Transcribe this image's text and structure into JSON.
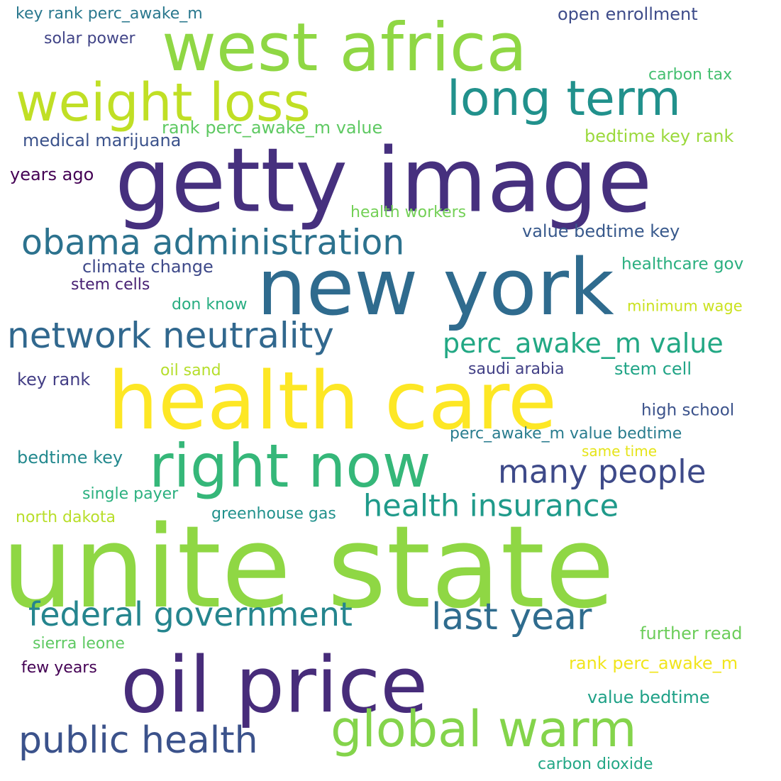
{
  "words": [
    {
      "text": "unite state",
      "color": "#8fd744"
    },
    {
      "text": "getty image",
      "color": "#46307e"
    },
    {
      "text": "health care",
      "color": "#fde725"
    },
    {
      "text": "new york",
      "color": "#2f6b8e"
    },
    {
      "text": "oil price",
      "color": "#472c7a"
    },
    {
      "text": "west africa",
      "color": "#8fd744"
    },
    {
      "text": "right now",
      "color": "#35b779"
    },
    {
      "text": "weight loss",
      "color": "#c0df25"
    },
    {
      "text": "long term",
      "color": "#21918c"
    },
    {
      "text": "global warm",
      "color": "#84d44b"
    },
    {
      "text": "network neutrality",
      "color": "#31688e"
    },
    {
      "text": "obama administration",
      "color": "#2c728e"
    },
    {
      "text": "federal government",
      "color": "#25858e"
    },
    {
      "text": "public health",
      "color": "#3b528b"
    },
    {
      "text": "last year",
      "color": "#2f6c8e"
    },
    {
      "text": "many people",
      "color": "#3e4a89"
    },
    {
      "text": "health insurance",
      "color": "#1f9a8a"
    },
    {
      "text": "perc_awake_m value",
      "color": "#22a884"
    },
    {
      "text": "key rank perc_awake_m",
      "color": "#2a788e"
    },
    {
      "text": "solar power",
      "color": "#414487"
    },
    {
      "text": "open enrollment",
      "color": "#3e4c8a"
    },
    {
      "text": "carbon tax",
      "color": "#44bf70"
    },
    {
      "text": "rank perc_awake_m value",
      "color": "#5ec962"
    },
    {
      "text": "medical marijuana",
      "color": "#3b528b"
    },
    {
      "text": "bedtime key rank",
      "color": "#9bd93c"
    },
    {
      "text": "years ago",
      "color": "#440154"
    },
    {
      "text": "health workers",
      "color": "#73d056"
    },
    {
      "text": "value bedtime key",
      "color": "#38598c"
    },
    {
      "text": "climate change",
      "color": "#3e4989"
    },
    {
      "text": "healthcare gov",
      "color": "#29af7f"
    },
    {
      "text": "stem cells",
      "color": "#482173"
    },
    {
      "text": "don know",
      "color": "#27ad81"
    },
    {
      "text": "minimum wage",
      "color": "#cae11f"
    },
    {
      "text": "oil sand",
      "color": "#b5de2b"
    },
    {
      "text": "saudi arabia",
      "color": "#424086"
    },
    {
      "text": "stem cell",
      "color": "#20a486"
    },
    {
      "text": "key rank",
      "color": "#433e85"
    },
    {
      "text": "high school",
      "color": "#3b528b"
    },
    {
      "text": "perc_awake_m value bedtime",
      "color": "#287c8e"
    },
    {
      "text": "same time",
      "color": "#e5e419"
    },
    {
      "text": "bedtime key",
      "color": "#23898e"
    },
    {
      "text": "single payer",
      "color": "#2ab07f"
    },
    {
      "text": "north dakota",
      "color": "#b8de29"
    },
    {
      "text": "greenhouse gas",
      "color": "#21918c"
    },
    {
      "text": "further read",
      "color": "#6ccd5a"
    },
    {
      "text": "sierra leone",
      "color": "#5ec962"
    },
    {
      "text": "few years",
      "color": "#440154"
    },
    {
      "text": "rank perc_awake_m",
      "color": "#f1e51d"
    },
    {
      "text": "value bedtime",
      "color": "#1fa187"
    },
    {
      "text": "carbon dioxide",
      "color": "#22a785"
    }
  ]
}
